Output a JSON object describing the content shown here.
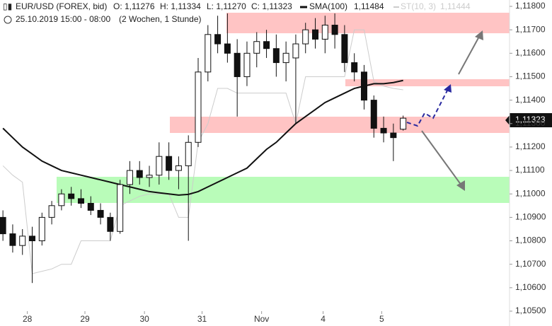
{
  "chart_data": {
    "type": "candlestick",
    "header": {
      "symbol": "EUR/USD (FOREX, bid)",
      "open": "O: 1,11276",
      "high": "H: 1,11334",
      "low": "L: 1,11270",
      "close": "C: 1,11323",
      "sma": "SMA(100)",
      "sma_value": "1,11484",
      "st": "ST(10, 3)",
      "st_value": "1,11444",
      "period": "25.10.2019 15:00 - 08:00",
      "range": "(2 Wochen, 1 Stunde)"
    },
    "last_price_label": "1,11323",
    "x": [
      0,
      1,
      2,
      3,
      4,
      5,
      6,
      7,
      8,
      9,
      10,
      11,
      12,
      13,
      14,
      15,
      16,
      17,
      18,
      19,
      20,
      21,
      22,
      23,
      24,
      25,
      26,
      27,
      28,
      29,
      30,
      31,
      32,
      33,
      34,
      35,
      36,
      37,
      38,
      39,
      40,
      41
    ],
    "open": [
      1.109,
      1.1083,
      1.1078,
      1.1082,
      1.108,
      1.109,
      1.1095,
      1.11,
      1.1098,
      1.1096,
      1.1093,
      1.109,
      1.1084,
      1.1104,
      1.111,
      1.1107,
      1.1108,
      1.1116,
      1.111,
      1.1112,
      1.1122,
      1.1152,
      1.1168,
      1.1164,
      1.116,
      1.115,
      1.116,
      1.1165,
      1.1162,
      1.1156,
      1.1158,
      1.1164,
      1.117,
      1.1166,
      1.1172,
      1.1168,
      1.1156,
      1.1152,
      1.114,
      1.1128,
      1.1126,
      1.11276
    ],
    "high": [
      1.1093,
      1.1087,
      1.1085,
      1.1086,
      1.1092,
      1.1097,
      1.1102,
      1.1103,
      1.1102,
      1.1099,
      1.1096,
      1.1092,
      1.1106,
      1.1114,
      1.1114,
      1.1112,
      1.1122,
      1.1122,
      1.1116,
      1.1125,
      1.1158,
      1.1172,
      1.1176,
      1.1177,
      1.1166,
      1.1165,
      1.1169,
      1.117,
      1.1168,
      1.1165,
      1.1168,
      1.1173,
      1.1175,
      1.1176,
      1.1177,
      1.1172,
      1.116,
      1.1155,
      1.1142,
      1.1133,
      1.113,
      1.11334
    ],
    "low": [
      1.108,
      1.1075,
      1.1074,
      1.1062,
      1.1078,
      1.1087,
      1.1093,
      1.1095,
      1.1094,
      1.1091,
      1.1087,
      1.108,
      1.1083,
      1.11,
      1.1104,
      1.1103,
      1.1104,
      1.1106,
      1.1102,
      1.108,
      1.112,
      1.1148,
      1.116,
      1.1156,
      1.1133,
      1.1146,
      1.1154,
      1.1158,
      1.115,
      1.1148,
      1.113,
      1.116,
      1.1162,
      1.116,
      1.1162,
      1.1152,
      1.1148,
      1.1136,
      1.1124,
      1.1122,
      1.1114,
      1.1127
    ],
    "close": [
      1.1083,
      1.1078,
      1.1082,
      1.108,
      1.109,
      1.1095,
      1.11,
      1.1098,
      1.1096,
      1.1093,
      1.109,
      1.1084,
      1.1104,
      1.111,
      1.1107,
      1.1108,
      1.1116,
      1.111,
      1.1112,
      1.1122,
      1.1152,
      1.1168,
      1.1164,
      1.116,
      1.115,
      1.116,
      1.1165,
      1.1162,
      1.1156,
      1.116,
      1.1164,
      1.117,
      1.1166,
      1.1172,
      1.1168,
      1.1156,
      1.1152,
      1.114,
      1.1128,
      1.1126,
      1.1124,
      1.11323
    ],
    "series": [
      {
        "name": "SMA(100)",
        "color": "#111111",
        "values": [
          1.1128,
          1.1124,
          1.112,
          1.1117,
          1.1114,
          1.1112,
          1.111,
          1.1109,
          1.1108,
          1.1107,
          1.1106,
          1.1105,
          1.1104,
          1.1103,
          1.1102,
          1.1101,
          1.11005,
          1.11,
          1.10995,
          1.10998,
          1.1101,
          1.1103,
          1.1105,
          1.1107,
          1.1109,
          1.1111,
          1.1115,
          1.1119,
          1.1122,
          1.1126,
          1.113,
          1.1133,
          1.1136,
          1.1139,
          1.1141,
          1.1143,
          1.1145,
          1.1146,
          1.1147,
          1.1147,
          1.11475,
          1.11484
        ]
      },
      {
        "name": "ST(10, 3)",
        "color": "#cccccc",
        "values": [
          1.1112,
          1.1108,
          1.1105,
          1.1066,
          1.1067,
          1.1068,
          1.107,
          1.107,
          1.108,
          1.108,
          1.108,
          1.108,
          1.1095,
          1.1097,
          1.1099,
          1.11,
          1.11,
          1.11,
          1.109,
          1.109,
          1.1122,
          1.113,
          1.1145,
          1.1145,
          1.1143,
          1.1143,
          1.1143,
          1.1143,
          1.1143,
          1.1143,
          1.113,
          1.115,
          1.115,
          1.115,
          1.115,
          1.115,
          1.117,
          1.117,
          1.1148,
          1.1146,
          1.1145,
          1.11444
        ]
      }
    ],
    "up_color": "#ffffff",
    "down_color": "#111111",
    "xlim": [
      -0.3,
      51.9
    ],
    "xticks": [
      {
        "value": 2.5,
        "label": "28"
      },
      {
        "value": 8.4,
        "label": "29"
      },
      {
        "value": 14.5,
        "label": "30"
      },
      {
        "value": 20.4,
        "label": "31"
      },
      {
        "value": 26.5,
        "label": "Nov"
      },
      {
        "value": 32.8,
        "label": "4"
      },
      {
        "value": 38.8,
        "label": "5"
      }
    ],
    "ylim": [
      1.105,
      1.118
    ],
    "yticks": [
      {
        "value": 1.105,
        "label": "1,10500"
      },
      {
        "value": 1.106,
        "label": "1,10600"
      },
      {
        "value": 1.107,
        "label": "1,10700"
      },
      {
        "value": 1.108,
        "label": "1,10800"
      },
      {
        "value": 1.109,
        "label": "1,10900"
      },
      {
        "value": 1.11,
        "label": "1,11000"
      },
      {
        "value": 1.111,
        "label": "1,11100"
      },
      {
        "value": 1.112,
        "label": "1,11200"
      },
      {
        "value": 1.113,
        "label": "1,11300"
      },
      {
        "value": 1.114,
        "label": "1,11400"
      },
      {
        "value": 1.115,
        "label": "1,11500"
      },
      {
        "value": 1.116,
        "label": "1,11600"
      },
      {
        "value": 1.117,
        "label": "1,11700"
      },
      {
        "value": 1.118,
        "label": "1,11800"
      }
    ]
  }
}
